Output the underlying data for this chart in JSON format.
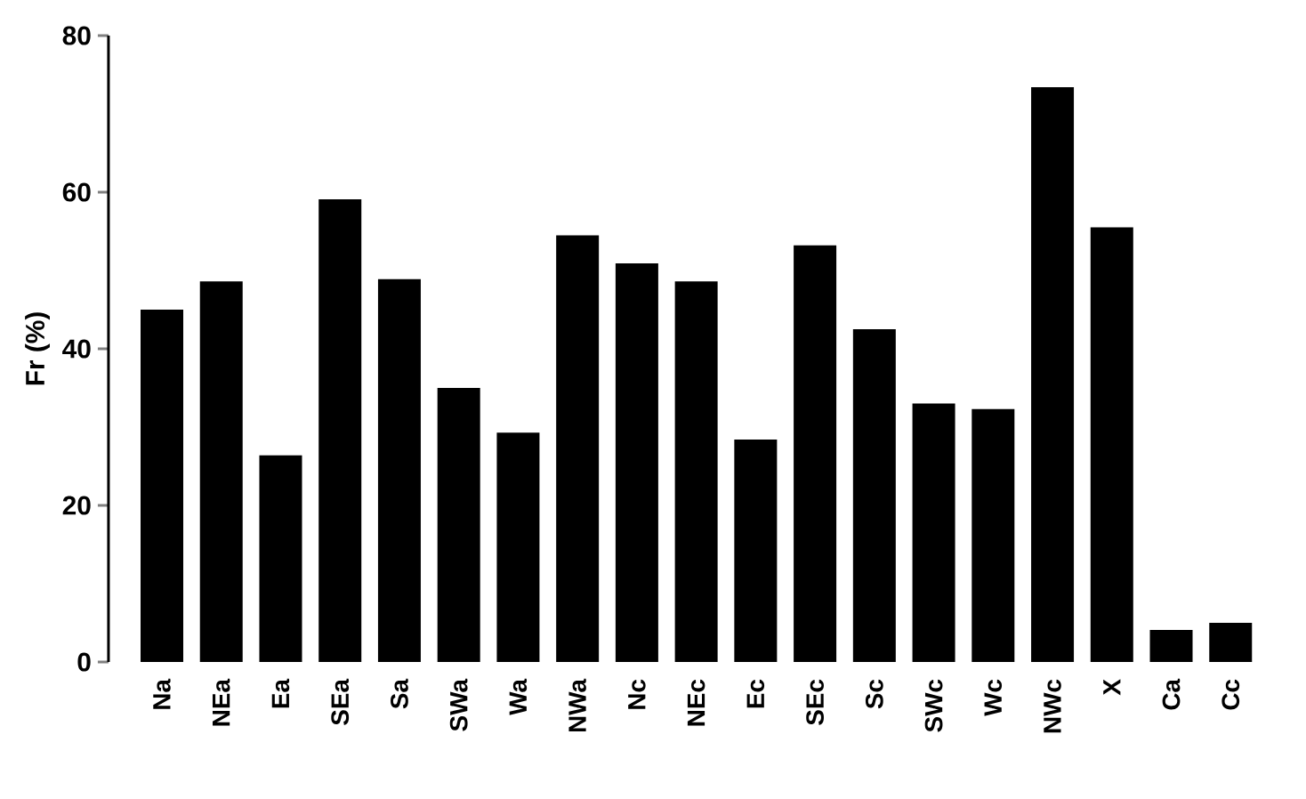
{
  "chart_data": {
    "type": "bar",
    "ylabel": "Fr (%)",
    "categories": [
      "Na",
      "NEa",
      "Ea",
      "SEa",
      "Sa",
      "SWa",
      "Wa",
      "NWa",
      "Nc",
      "NEc",
      "Ec",
      "SEc",
      "Sc",
      "SWc",
      "Wc",
      "NWc",
      "X",
      "Ca",
      "Cc"
    ],
    "values": [
      45,
      48.6,
      26.4,
      59.1,
      48.9,
      35,
      29.3,
      54.5,
      50.9,
      48.6,
      28.4,
      53.2,
      42.5,
      33,
      32.3,
      73.4,
      55.5,
      4.1,
      5
    ],
    "color": "#000000",
    "ylim": [
      0,
      80
    ],
    "yticks": [
      0,
      20,
      40,
      60,
      80
    ]
  }
}
